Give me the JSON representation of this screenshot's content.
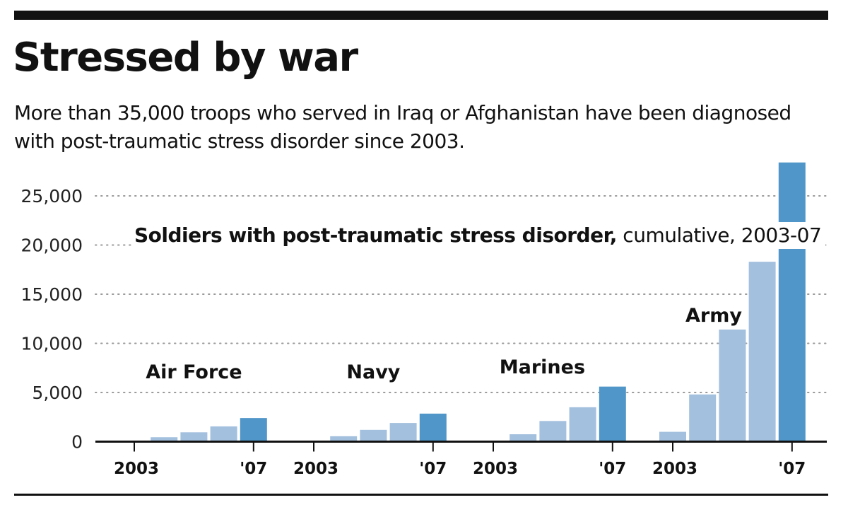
{
  "title": "Stressed by war",
  "subtitle": "More than 35,000 troops who served in Iraq or Afghanistan have been diagnosed with post-traumatic stress disorder since 2003.",
  "chart_data": {
    "type": "bar",
    "title_bold": "Soldiers with post-traumatic stress disorder,",
    "title_rest": " cumulative, 2003-07",
    "xlabel": "",
    "ylabel": "",
    "ylim": [
      0,
      28500
    ],
    "yticks": [
      0,
      5000,
      10000,
      15000,
      20000,
      25000
    ],
    "ytick_labels": [
      "0",
      "5,000",
      "10,000",
      "15,000",
      "20,000",
      "25,000"
    ],
    "grid": "dotted horizontal",
    "years": [
      "2003",
      "2004",
      "2005",
      "2006",
      "2007"
    ],
    "xtick_labels": [
      "2003",
      "'07"
    ],
    "colors": {
      "light": "#a3c0de",
      "dark": "#5096c8"
    },
    "series": [
      {
        "name": "Air Force",
        "values": [
          50,
          450,
          950,
          1550,
          2400
        ]
      },
      {
        "name": "Navy",
        "values": [
          50,
          550,
          1200,
          1900,
          2850
        ]
      },
      {
        "name": "Marines",
        "values": [
          50,
          750,
          2100,
          3500,
          5600
        ]
      },
      {
        "name": "Army",
        "values": [
          1000,
          4800,
          11400,
          18300,
          28400
        ]
      }
    ]
  }
}
